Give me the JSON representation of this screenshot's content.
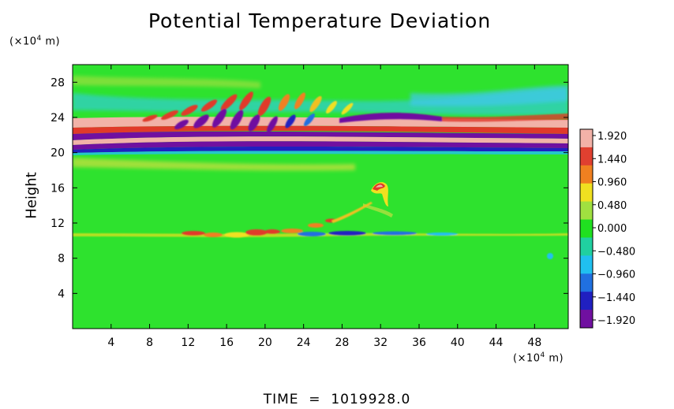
{
  "chart_data": {
    "type": "heatmap",
    "title": "Potential Temperature Deviation",
    "ylabel": "Height",
    "y_unit": {
      "base": "(×10",
      "exp": "4",
      "rest": " m)"
    },
    "x_unit": {
      "base": "(×10",
      "exp": "4",
      "rest": " m)"
    },
    "xlim": [
      0,
      51.5
    ],
    "ylim": [
      0,
      30
    ],
    "x_ticks": [
      "4",
      "8",
      "12",
      "16",
      "20",
      "24",
      "28",
      "32",
      "36",
      "40",
      "44",
      "48"
    ],
    "y_ticks": [
      "4",
      "8",
      "12",
      "16",
      "20",
      "24",
      "28"
    ],
    "colorbar": {
      "range": [
        -1.92,
        1.92
      ],
      "labels": [
        "1.920",
        "1.440",
        "0.960",
        "0.480",
        "0.000",
        "−0.480",
        "−0.960",
        "−1.440",
        "−1.920"
      ],
      "colors": [
        "#f2b2a8",
        "#e04030",
        "#f08020",
        "#f0e020",
        "#a0e040",
        "#20e020",
        "#20d0a0",
        "#20c0f0",
        "#2070e0",
        "#2020c0",
        "#7010a0"
      ]
    },
    "features": [
      {
        "label": "strong positive/negative banding",
        "height_range": [
          19.8,
          23.8
        ]
      },
      {
        "label": "wave field",
        "height_range": [
          22,
          27.5
        ],
        "x_range": [
          10,
          30
        ]
      },
      {
        "label": "positive anomaly",
        "height": 16.8,
        "x": 31
      },
      {
        "label": "perturbation layer",
        "height": 10.8,
        "x_range": [
          12,
          32
        ]
      }
    ]
  },
  "footer": {
    "time_text": "TIME  =  1019928.0"
  }
}
